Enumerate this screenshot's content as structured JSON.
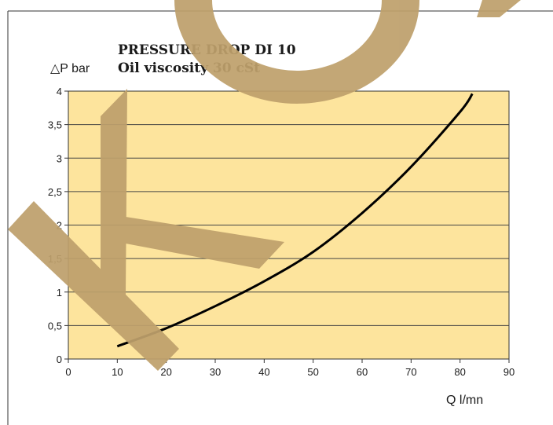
{
  "chart_data": {
    "type": "line",
    "title": "PRESSURE DROP DI 10",
    "subtitle": "Oil viscosity 30 cSt",
    "ylabel": "△P bar",
    "xlabel": "Q l/mn",
    "xlim": [
      0,
      90
    ],
    "ylim": [
      0,
      4
    ],
    "x_ticks": [
      "0",
      "10",
      "20",
      "30",
      "40",
      "50",
      "60",
      "70",
      "80",
      "90"
    ],
    "y_ticks": [
      "0",
      "0,5",
      "1",
      "1,5",
      "2",
      "2,5",
      "3",
      "3,5",
      "4"
    ],
    "grid": true,
    "background_color": "#fde49d",
    "line_color": "#000000",
    "series": [
      {
        "x": [
          10,
          20,
          30,
          40,
          50,
          60,
          70,
          80,
          82.5
        ],
        "values": [
          0.19,
          0.46,
          0.79,
          1.16,
          1.6,
          2.18,
          2.87,
          3.69,
          3.96
        ]
      }
    ]
  },
  "watermark": {
    "text": "KO",
    "color": "#bea06c"
  }
}
